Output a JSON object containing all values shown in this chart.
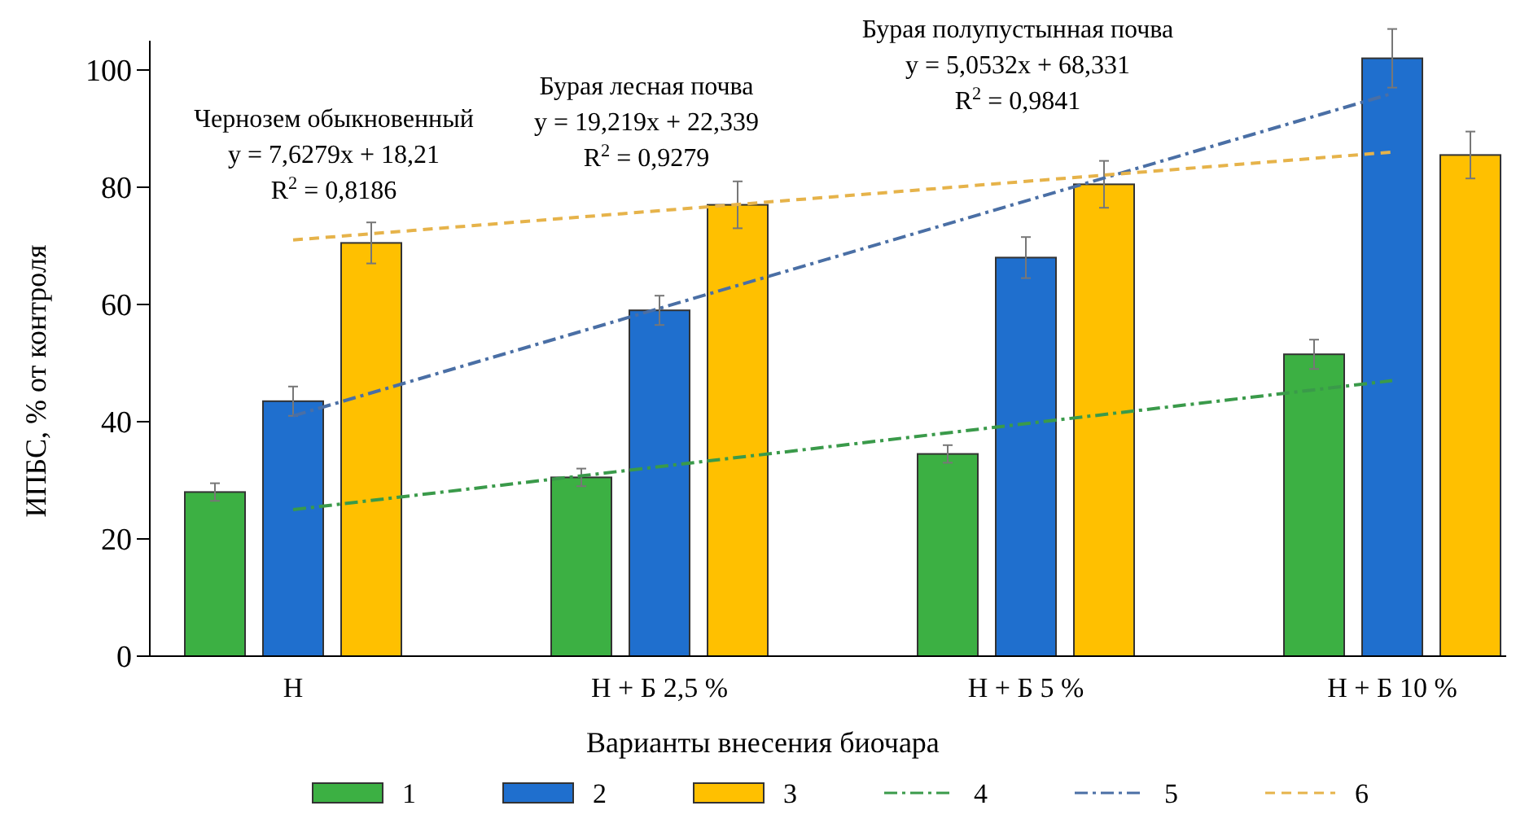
{
  "chart_data": {
    "type": "bar",
    "xlabel": "Варианты внесения биочара",
    "ylabel": "ИПБС, % от контроля",
    "categories": [
      "Н",
      "Н + Б 2,5 %",
      "Н + Б 5 %",
      "Н + Б 10 %"
    ],
    "series": [
      {
        "name": "1",
        "color": "#3cb043",
        "values": [
          28,
          30.5,
          34.5,
          51.5
        ],
        "errors": [
          1.5,
          1.5,
          1.5,
          2.5
        ]
      },
      {
        "name": "2",
        "color": "#1f6fce",
        "values": [
          43.5,
          59,
          68,
          102
        ],
        "errors": [
          2.5,
          2.5,
          3.5,
          5
        ]
      },
      {
        "name": "3",
        "color": "#ffc000",
        "values": [
          70.5,
          77,
          80.5,
          85.5
        ],
        "errors": [
          3.5,
          4,
          4,
          4
        ]
      },
      {
        "name": "4",
        "type": "line",
        "color": "#3a9a4a",
        "line_style": "dashdot",
        "x": [
          "Н",
          "Н + Б 10 %"
        ],
        "values": [
          25,
          47
        ]
      },
      {
        "name": "5",
        "type": "line",
        "color": "#4a6fa5",
        "line_style": "dashdot",
        "x": [
          "Н",
          "Н + Б 10 %"
        ],
        "values": [
          41,
          96
        ]
      },
      {
        "name": "6",
        "type": "line",
        "color": "#e6b34a",
        "line_style": "dashed",
        "x": [
          "Н",
          "Н + Б 10 %"
        ],
        "values": [
          71,
          86
        ]
      }
    ],
    "ylim": [
      0,
      105
    ],
    "yticks": [
      0,
      20,
      40,
      60,
      80,
      100
    ],
    "grid": false,
    "legend": "bottom",
    "annotations": [
      "Чернозем обыкновенный\ny = 7,6279x + 18,21\nR$^{2}$ = 0,8186",
      "Бурая лесная почва\ny = 19,219x + 22,339\nR$^{2}$ = 0,9279",
      "Бурая полупустынная почва\ny = 5,0532x + 68,331\nR$^{2}$ = 0,9841"
    ]
  }
}
